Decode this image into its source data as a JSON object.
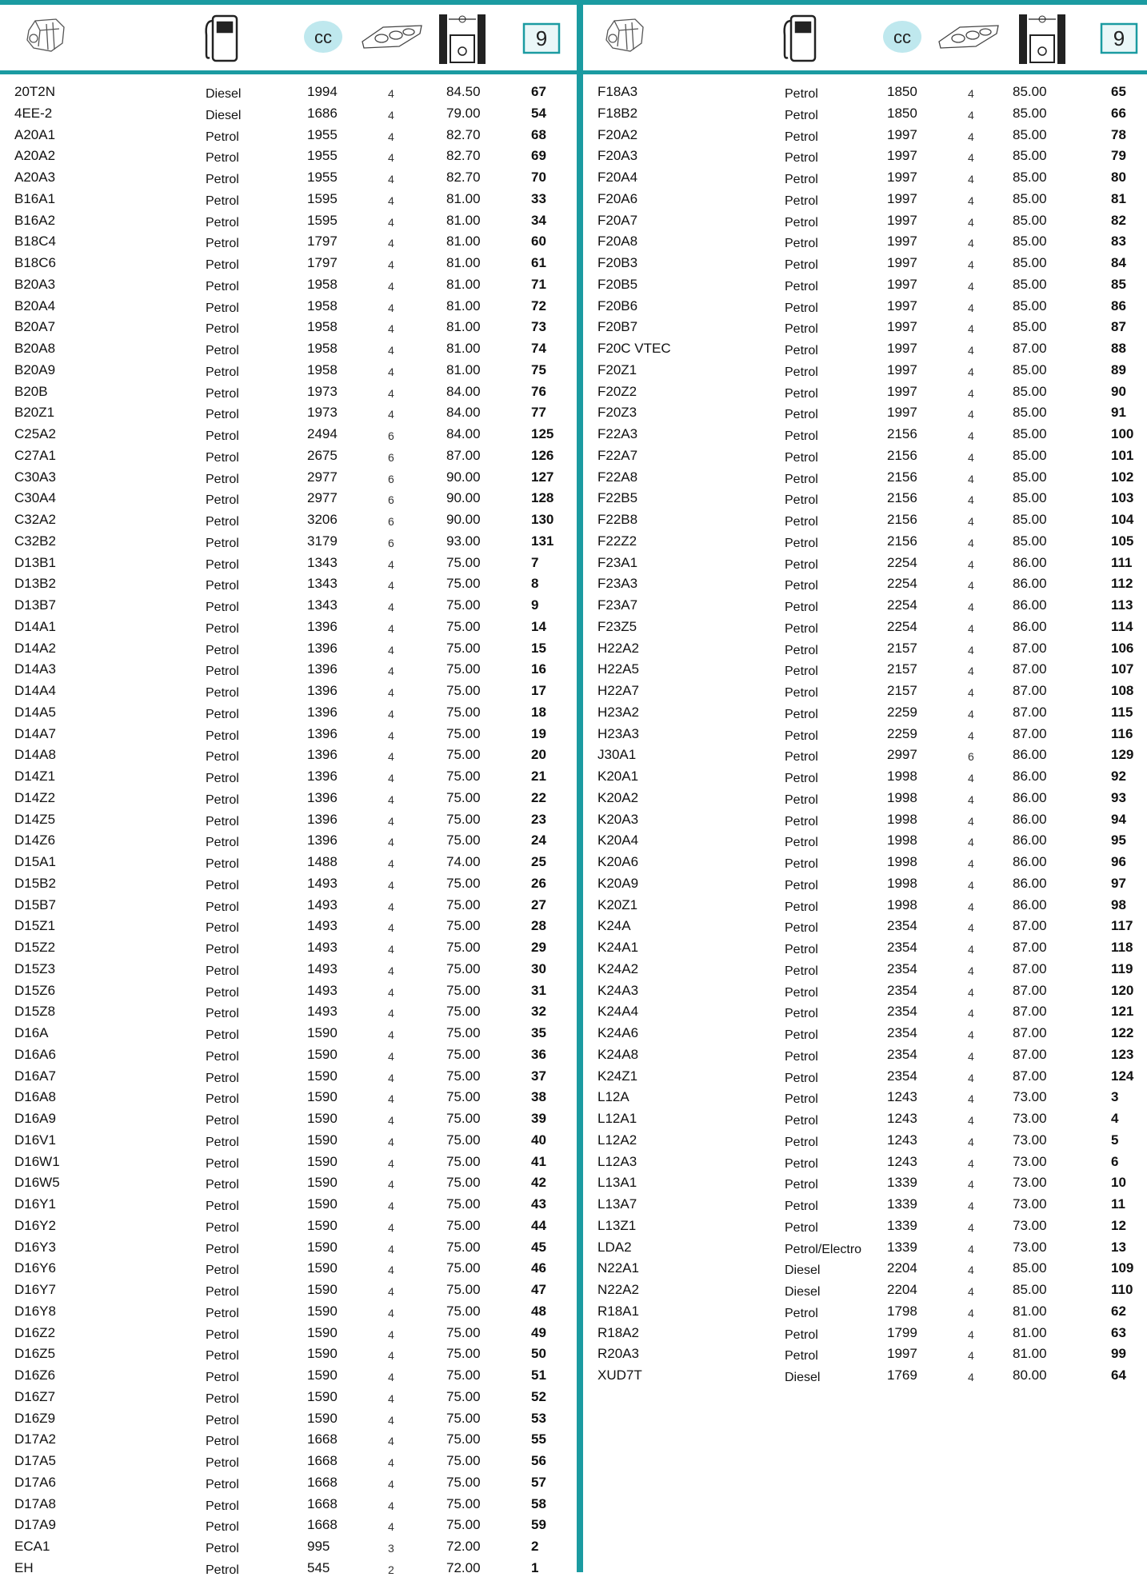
{
  "header": {
    "cc_label": "cc",
    "page_number": "9"
  },
  "left_table": {
    "rows": [
      [
        "20T2N",
        "Diesel",
        "1994",
        "4",
        "84.50",
        "67"
      ],
      [
        "4EE-2",
        "Diesel",
        "1686",
        "4",
        "79.00",
        "54"
      ],
      [
        "A20A1",
        "Petrol",
        "1955",
        "4",
        "82.70",
        "68"
      ],
      [
        "A20A2",
        "Petrol",
        "1955",
        "4",
        "82.70",
        "69"
      ],
      [
        "A20A3",
        "Petrol",
        "1955",
        "4",
        "82.70",
        "70"
      ],
      [
        "B16A1",
        "Petrol",
        "1595",
        "4",
        "81.00",
        "33"
      ],
      [
        "B16A2",
        "Petrol",
        "1595",
        "4",
        "81.00",
        "34"
      ],
      [
        "B18C4",
        "Petrol",
        "1797",
        "4",
        "81.00",
        "60"
      ],
      [
        "B18C6",
        "Petrol",
        "1797",
        "4",
        "81.00",
        "61"
      ],
      [
        "B20A3",
        "Petrol",
        "1958",
        "4",
        "81.00",
        "71"
      ],
      [
        "B20A4",
        "Petrol",
        "1958",
        "4",
        "81.00",
        "72"
      ],
      [
        "B20A7",
        "Petrol",
        "1958",
        "4",
        "81.00",
        "73"
      ],
      [
        "B20A8",
        "Petrol",
        "1958",
        "4",
        "81.00",
        "74"
      ],
      [
        "B20A9",
        "Petrol",
        "1958",
        "4",
        "81.00",
        "75"
      ],
      [
        "B20B",
        "Petrol",
        "1973",
        "4",
        "84.00",
        "76"
      ],
      [
        "B20Z1",
        "Petrol",
        "1973",
        "4",
        "84.00",
        "77"
      ],
      [
        "C25A2",
        "Petrol",
        "2494",
        "6",
        "84.00",
        "125"
      ],
      [
        "C27A1",
        "Petrol",
        "2675",
        "6",
        "87.00",
        "126"
      ],
      [
        "C30A3",
        "Petrol",
        "2977",
        "6",
        "90.00",
        "127"
      ],
      [
        "C30A4",
        "Petrol",
        "2977",
        "6",
        "90.00",
        "128"
      ],
      [
        "C32A2",
        "Petrol",
        "3206",
        "6",
        "90.00",
        "130"
      ],
      [
        "C32B2",
        "Petrol",
        "3179",
        "6",
        "93.00",
        "131"
      ],
      [
        "D13B1",
        "Petrol",
        "1343",
        "4",
        "75.00",
        "7"
      ],
      [
        "D13B2",
        "Petrol",
        "1343",
        "4",
        "75.00",
        "8"
      ],
      [
        "D13B7",
        "Petrol",
        "1343",
        "4",
        "75.00",
        "9"
      ],
      [
        "D14A1",
        "Petrol",
        "1396",
        "4",
        "75.00",
        "14"
      ],
      [
        "D14A2",
        "Petrol",
        "1396",
        "4",
        "75.00",
        "15"
      ],
      [
        "D14A3",
        "Petrol",
        "1396",
        "4",
        "75.00",
        "16"
      ],
      [
        "D14A4",
        "Petrol",
        "1396",
        "4",
        "75.00",
        "17"
      ],
      [
        "D14A5",
        "Petrol",
        "1396",
        "4",
        "75.00",
        "18"
      ],
      [
        "D14A7",
        "Petrol",
        "1396",
        "4",
        "75.00",
        "19"
      ],
      [
        "D14A8",
        "Petrol",
        "1396",
        "4",
        "75.00",
        "20"
      ],
      [
        "D14Z1",
        "Petrol",
        "1396",
        "4",
        "75.00",
        "21"
      ],
      [
        "D14Z2",
        "Petrol",
        "1396",
        "4",
        "75.00",
        "22"
      ],
      [
        "D14Z5",
        "Petrol",
        "1396",
        "4",
        "75.00",
        "23"
      ],
      [
        "D14Z6",
        "Petrol",
        "1396",
        "4",
        "75.00",
        "24"
      ],
      [
        "D15A1",
        "Petrol",
        "1488",
        "4",
        "74.00",
        "25"
      ],
      [
        "D15B2",
        "Petrol",
        "1493",
        "4",
        "75.00",
        "26"
      ],
      [
        "D15B7",
        "Petrol",
        "1493",
        "4",
        "75.00",
        "27"
      ],
      [
        "D15Z1",
        "Petrol",
        "1493",
        "4",
        "75.00",
        "28"
      ],
      [
        "D15Z2",
        "Petrol",
        "1493",
        "4",
        "75.00",
        "29"
      ],
      [
        "D15Z3",
        "Petrol",
        "1493",
        "4",
        "75.00",
        "30"
      ],
      [
        "D15Z6",
        "Petrol",
        "1493",
        "4",
        "75.00",
        "31"
      ],
      [
        "D15Z8",
        "Petrol",
        "1493",
        "4",
        "75.00",
        "32"
      ],
      [
        "D16A",
        "Petrol",
        "1590",
        "4",
        "75.00",
        "35"
      ],
      [
        "D16A6",
        "Petrol",
        "1590",
        "4",
        "75.00",
        "36"
      ],
      [
        "D16A7",
        "Petrol",
        "1590",
        "4",
        "75.00",
        "37"
      ],
      [
        "D16A8",
        "Petrol",
        "1590",
        "4",
        "75.00",
        "38"
      ],
      [
        "D16A9",
        "Petrol",
        "1590",
        "4",
        "75.00",
        "39"
      ],
      [
        "D16V1",
        "Petrol",
        "1590",
        "4",
        "75.00",
        "40"
      ],
      [
        "D16W1",
        "Petrol",
        "1590",
        "4",
        "75.00",
        "41"
      ],
      [
        "D16W5",
        "Petrol",
        "1590",
        "4",
        "75.00",
        "42"
      ],
      [
        "D16Y1",
        "Petrol",
        "1590",
        "4",
        "75.00",
        "43"
      ],
      [
        "D16Y2",
        "Petrol",
        "1590",
        "4",
        "75.00",
        "44"
      ],
      [
        "D16Y3",
        "Petrol",
        "1590",
        "4",
        "75.00",
        "45"
      ],
      [
        "D16Y6",
        "Petrol",
        "1590",
        "4",
        "75.00",
        "46"
      ],
      [
        "D16Y7",
        "Petrol",
        "1590",
        "4",
        "75.00",
        "47"
      ],
      [
        "D16Y8",
        "Petrol",
        "1590",
        "4",
        "75.00",
        "48"
      ],
      [
        "D16Z2",
        "Petrol",
        "1590",
        "4",
        "75.00",
        "49"
      ],
      [
        "D16Z5",
        "Petrol",
        "1590",
        "4",
        "75.00",
        "50"
      ],
      [
        "D16Z6",
        "Petrol",
        "1590",
        "4",
        "75.00",
        "51"
      ],
      [
        "D16Z7",
        "Petrol",
        "1590",
        "4",
        "75.00",
        "52"
      ],
      [
        "D16Z9",
        "Petrol",
        "1590",
        "4",
        "75.00",
        "53"
      ],
      [
        "D17A2",
        "Petrol",
        "1668",
        "4",
        "75.00",
        "55"
      ],
      [
        "D17A5",
        "Petrol",
        "1668",
        "4",
        "75.00",
        "56"
      ],
      [
        "D17A6",
        "Petrol",
        "1668",
        "4",
        "75.00",
        "57"
      ],
      [
        "D17A8",
        "Petrol",
        "1668",
        "4",
        "75.00",
        "58"
      ],
      [
        "D17A9",
        "Petrol",
        "1668",
        "4",
        "75.00",
        "59"
      ],
      [
        "ECA1",
        "Petrol",
        "995",
        "3",
        "72.00",
        "2"
      ],
      [
        "EH",
        "Petrol",
        "545",
        "2",
        "72.00",
        "1"
      ]
    ]
  },
  "right_table": {
    "rows": [
      [
        "F18A3",
        "Petrol",
        "1850",
        "4",
        "85.00",
        "65"
      ],
      [
        "F18B2",
        "Petrol",
        "1850",
        "4",
        "85.00",
        "66"
      ],
      [
        "F20A2",
        "Petrol",
        "1997",
        "4",
        "85.00",
        "78"
      ],
      [
        "F20A3",
        "Petrol",
        "1997",
        "4",
        "85.00",
        "79"
      ],
      [
        "F20A4",
        "Petrol",
        "1997",
        "4",
        "85.00",
        "80"
      ],
      [
        "F20A6",
        "Petrol",
        "1997",
        "4",
        "85.00",
        "81"
      ],
      [
        "F20A7",
        "Petrol",
        "1997",
        "4",
        "85.00",
        "82"
      ],
      [
        "F20A8",
        "Petrol",
        "1997",
        "4",
        "85.00",
        "83"
      ],
      [
        "F20B3",
        "Petrol",
        "1997",
        "4",
        "85.00",
        "84"
      ],
      [
        "F20B5",
        "Petrol",
        "1997",
        "4",
        "85.00",
        "85"
      ],
      [
        "F20B6",
        "Petrol",
        "1997",
        "4",
        "85.00",
        "86"
      ],
      [
        "F20B7",
        "Petrol",
        "1997",
        "4",
        "85.00",
        "87"
      ],
      [
        "F20C VTEC",
        "Petrol",
        "1997",
        "4",
        "87.00",
        "88"
      ],
      [
        "F20Z1",
        "Petrol",
        "1997",
        "4",
        "85.00",
        "89"
      ],
      [
        "F20Z2",
        "Petrol",
        "1997",
        "4",
        "85.00",
        "90"
      ],
      [
        "F20Z3",
        "Petrol",
        "1997",
        "4",
        "85.00",
        "91"
      ],
      [
        "F22A3",
        "Petrol",
        "2156",
        "4",
        "85.00",
        "100"
      ],
      [
        "F22A7",
        "Petrol",
        "2156",
        "4",
        "85.00",
        "101"
      ],
      [
        "F22A8",
        "Petrol",
        "2156",
        "4",
        "85.00",
        "102"
      ],
      [
        "F22B5",
        "Petrol",
        "2156",
        "4",
        "85.00",
        "103"
      ],
      [
        "F22B8",
        "Petrol",
        "2156",
        "4",
        "85.00",
        "104"
      ],
      [
        "F22Z2",
        "Petrol",
        "2156",
        "4",
        "85.00",
        "105"
      ],
      [
        "F23A1",
        "Petrol",
        "2254",
        "4",
        "86.00",
        "111"
      ],
      [
        "F23A3",
        "Petrol",
        "2254",
        "4",
        "86.00",
        "112"
      ],
      [
        "F23A7",
        "Petrol",
        "2254",
        "4",
        "86.00",
        "113"
      ],
      [
        "F23Z5",
        "Petrol",
        "2254",
        "4",
        "86.00",
        "114"
      ],
      [
        "H22A2",
        "Petrol",
        "2157",
        "4",
        "87.00",
        "106"
      ],
      [
        "H22A5",
        "Petrol",
        "2157",
        "4",
        "87.00",
        "107"
      ],
      [
        "H22A7",
        "Petrol",
        "2157",
        "4",
        "87.00",
        "108"
      ],
      [
        "H23A2",
        "Petrol",
        "2259",
        "4",
        "87.00",
        "115"
      ],
      [
        "H23A3",
        "Petrol",
        "2259",
        "4",
        "87.00",
        "116"
      ],
      [
        "J30A1",
        "Petrol",
        "2997",
        "6",
        "86.00",
        "129"
      ],
      [
        "K20A1",
        "Petrol",
        "1998",
        "4",
        "86.00",
        "92"
      ],
      [
        "K20A2",
        "Petrol",
        "1998",
        "4",
        "86.00",
        "93"
      ],
      [
        "K20A3",
        "Petrol",
        "1998",
        "4",
        "86.00",
        "94"
      ],
      [
        "K20A4",
        "Petrol",
        "1998",
        "4",
        "86.00",
        "95"
      ],
      [
        "K20A6",
        "Petrol",
        "1998",
        "4",
        "86.00",
        "96"
      ],
      [
        "K20A9",
        "Petrol",
        "1998",
        "4",
        "86.00",
        "97"
      ],
      [
        "K20Z1",
        "Petrol",
        "1998",
        "4",
        "86.00",
        "98"
      ],
      [
        "K24A",
        "Petrol",
        "2354",
        "4",
        "87.00",
        "117"
      ],
      [
        "K24A1",
        "Petrol",
        "2354",
        "4",
        "87.00",
        "118"
      ],
      [
        "K24A2",
        "Petrol",
        "2354",
        "4",
        "87.00",
        "119"
      ],
      [
        "K24A3",
        "Petrol",
        "2354",
        "4",
        "87.00",
        "120"
      ],
      [
        "K24A4",
        "Petrol",
        "2354",
        "4",
        "87.00",
        "121"
      ],
      [
        "K24A6",
        "Petrol",
        "2354",
        "4",
        "87.00",
        "122"
      ],
      [
        "K24A8",
        "Petrol",
        "2354",
        "4",
        "87.00",
        "123"
      ],
      [
        "K24Z1",
        "Petrol",
        "2354",
        "4",
        "87.00",
        "124"
      ],
      [
        "L12A",
        "Petrol",
        "1243",
        "4",
        "73.00",
        "3"
      ],
      [
        "L12A1",
        "Petrol",
        "1243",
        "4",
        "73.00",
        "4"
      ],
      [
        "L12A2",
        "Petrol",
        "1243",
        "4",
        "73.00",
        "5"
      ],
      [
        "L12A3",
        "Petrol",
        "1243",
        "4",
        "73.00",
        "6"
      ],
      [
        "L13A1",
        "Petrol",
        "1339",
        "4",
        "73.00",
        "10"
      ],
      [
        "L13A7",
        "Petrol",
        "1339",
        "4",
        "73.00",
        "11"
      ],
      [
        "L13Z1",
        "Petrol",
        "1339",
        "4",
        "73.00",
        "12"
      ],
      [
        "LDA2",
        "Petrol/Electro",
        "1339",
        "4",
        "73.00",
        "13"
      ],
      [
        "N22A1",
        "Diesel",
        "2204",
        "4",
        "85.00",
        "109"
      ],
      [
        "N22A2",
        "Diesel",
        "2204",
        "4",
        "85.00",
        "110"
      ],
      [
        "R18A1",
        "Petrol",
        "1798",
        "4",
        "81.00",
        "62"
      ],
      [
        "R18A2",
        "Petrol",
        "1799",
        "4",
        "81.00",
        "63"
      ],
      [
        "R20A3",
        "Petrol",
        "1997",
        "4",
        "81.00",
        "99"
      ],
      [
        "XUD7T",
        "Diesel",
        "1769",
        "4",
        "80.00",
        "64"
      ]
    ]
  }
}
